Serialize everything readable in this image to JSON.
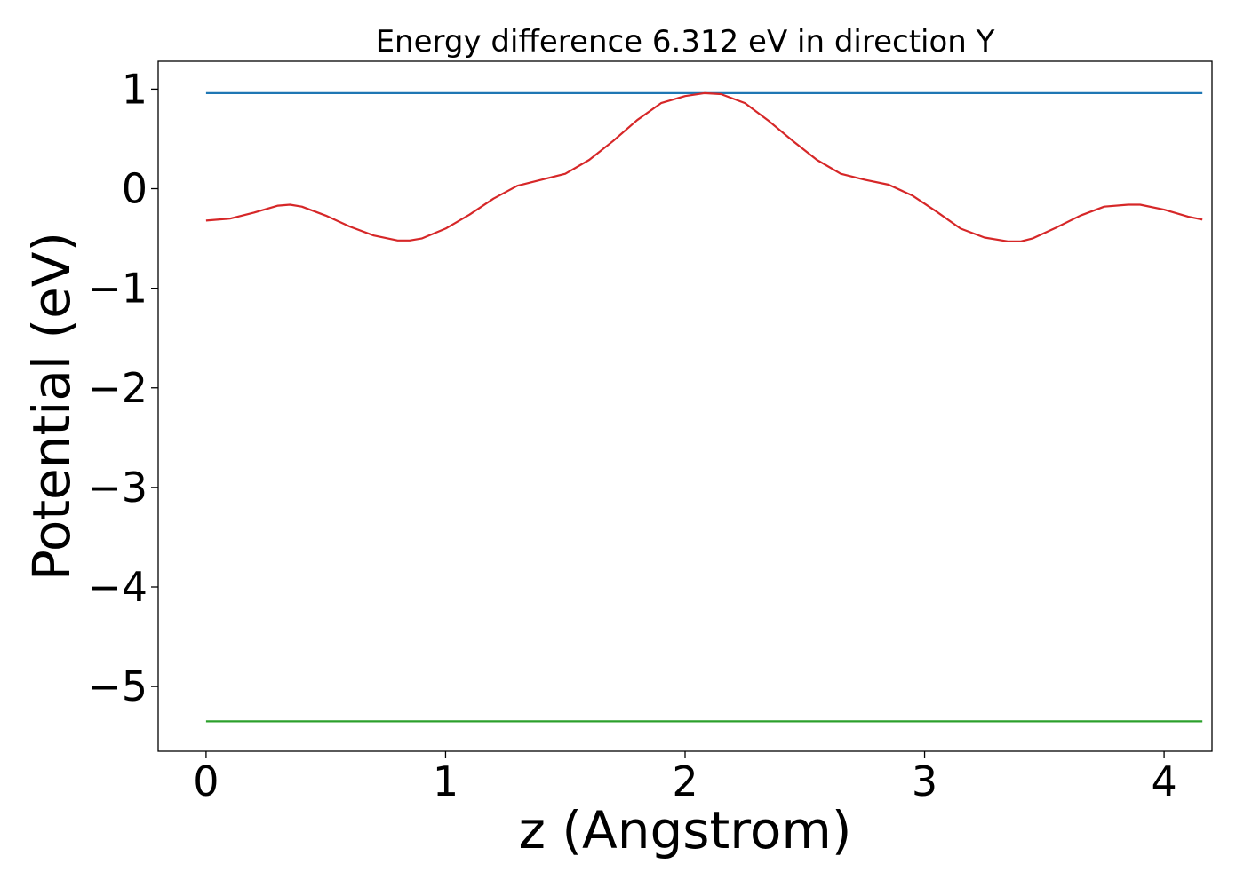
{
  "chart_data": {
    "type": "line",
    "title": "Energy difference 6.312 eV in direction Y",
    "xlabel": "z (Angstrom)",
    "ylabel": "Potential (eV)",
    "xlim": [
      -0.2,
      4.2
    ],
    "ylim": [
      -5.65,
      1.28
    ],
    "x_ticks": [
      0,
      1,
      2,
      3,
      4
    ],
    "x_tick_labels": [
      "0",
      "1",
      "2",
      "3",
      "4"
    ],
    "y_ticks": [
      1,
      0,
      -1,
      -2,
      -3,
      -4,
      -5
    ],
    "y_tick_labels": [
      "1",
      "0",
      "−1",
      "−2",
      "−3",
      "−4",
      "−5"
    ],
    "grid": false,
    "legend": "none",
    "series": [
      {
        "color": "#1f77b4",
        "x": [
          0,
          4.16
        ],
        "y": [
          0.96,
          0.96
        ]
      },
      {
        "color": "#2ca02c",
        "x": [
          0,
          4.16
        ],
        "y": [
          -5.35,
          -5.35
        ]
      },
      {
        "color": "#d62728",
        "x": [
          0,
          0.1,
          0.2,
          0.3,
          0.35,
          0.4,
          0.5,
          0.6,
          0.7,
          0.8,
          0.85,
          0.9,
          1.0,
          1.1,
          1.2,
          1.3,
          1.4,
          1.5,
          1.6,
          1.7,
          1.8,
          1.9,
          2.0,
          2.08,
          2.15,
          2.25,
          2.35,
          2.45,
          2.55,
          2.65,
          2.75,
          2.85,
          2.95,
          3.05,
          3.15,
          3.25,
          3.35,
          3.4,
          3.45,
          3.55,
          3.65,
          3.75,
          3.85,
          3.9,
          4.0,
          4.1,
          4.16
        ],
        "y": [
          -0.32,
          -0.3,
          -0.24,
          -0.17,
          -0.16,
          -0.18,
          -0.27,
          -0.38,
          -0.47,
          -0.52,
          -0.52,
          -0.5,
          -0.4,
          -0.26,
          -0.1,
          0.03,
          0.09,
          0.15,
          0.29,
          0.48,
          0.69,
          0.86,
          0.93,
          0.96,
          0.95,
          0.86,
          0.68,
          0.48,
          0.29,
          0.15,
          0.09,
          0.04,
          -0.07,
          -0.23,
          -0.4,
          -0.49,
          -0.53,
          -0.53,
          -0.5,
          -0.39,
          -0.27,
          -0.18,
          -0.16,
          -0.16,
          -0.21,
          -0.28,
          -0.31
        ]
      }
    ]
  }
}
